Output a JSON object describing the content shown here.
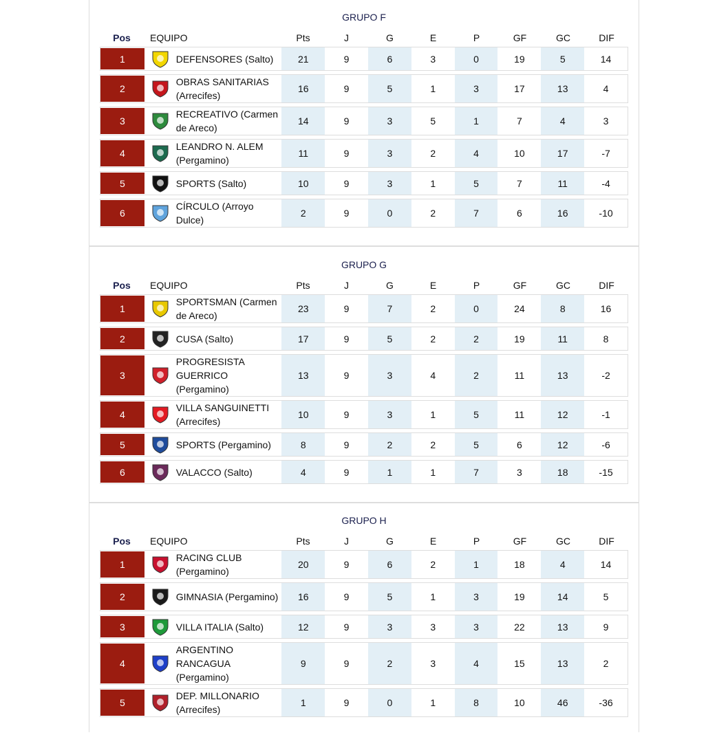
{
  "headers": {
    "pos": "Pos",
    "team": "EQUIPO",
    "cols": [
      "Pts",
      "J",
      "G",
      "E",
      "P",
      "GF",
      "GC",
      "DIF"
    ]
  },
  "groups": [
    {
      "title": "GRUPO F",
      "rows": [
        {
          "pos": "1",
          "team": "DEFENSORES (Salto)",
          "logo": "#f2d600",
          "stats": [
            "21",
            "9",
            "6",
            "3",
            "0",
            "19",
            "5",
            "14"
          ]
        },
        {
          "pos": "2",
          "team": "OBRAS SANITARIAS (Arrecifes)",
          "logo": "#c4161c",
          "stats": [
            "16",
            "9",
            "5",
            "1",
            "3",
            "17",
            "13",
            "4"
          ]
        },
        {
          "pos": "3",
          "team": "RECREATIVO (Carmen de Areco)",
          "logo": "#2e8b3d",
          "stats": [
            "14",
            "9",
            "3",
            "5",
            "1",
            "7",
            "4",
            "3"
          ]
        },
        {
          "pos": "4",
          "team": "LEANDRO N. ALEM (Pergamino)",
          "logo": "#1d6b4f",
          "stats": [
            "11",
            "9",
            "3",
            "2",
            "4",
            "10",
            "17",
            "-7"
          ]
        },
        {
          "pos": "5",
          "team": "SPORTS (Salto)",
          "logo": "#111111",
          "stats": [
            "10",
            "9",
            "3",
            "1",
            "5",
            "7",
            "11",
            "-4"
          ]
        },
        {
          "pos": "6",
          "team": "CÍRCULO (Arroyo Dulce)",
          "logo": "#5fa3dc",
          "stats": [
            "2",
            "9",
            "0",
            "2",
            "7",
            "6",
            "16",
            "-10"
          ]
        }
      ]
    },
    {
      "title": "GRUPO G",
      "rows": [
        {
          "pos": "1",
          "team": "SPORTSMAN (Carmen de Areco)",
          "logo": "#e8c800",
          "stats": [
            "23",
            "9",
            "7",
            "2",
            "0",
            "24",
            "8",
            "16"
          ]
        },
        {
          "pos": "2",
          "team": "CUSA (Salto)",
          "logo": "#222222",
          "stats": [
            "17",
            "9",
            "5",
            "2",
            "2",
            "19",
            "11",
            "8"
          ]
        },
        {
          "pos": "3",
          "team": "PROGRESISTA GUERRICO (Pergamino)",
          "logo": "#d0202a",
          "stats": [
            "13",
            "9",
            "3",
            "4",
            "2",
            "11",
            "13",
            "-2"
          ]
        },
        {
          "pos": "4",
          "team": "VILLA SANGUINETTI (Arrecifes)",
          "logo": "#e31b23",
          "stats": [
            "10",
            "9",
            "3",
            "1",
            "5",
            "11",
            "12",
            "-1"
          ]
        },
        {
          "pos": "5",
          "team": "SPORTS (Pergamino)",
          "logo": "#1f4c9c",
          "stats": [
            "8",
            "9",
            "2",
            "2",
            "5",
            "6",
            "12",
            "-6"
          ]
        },
        {
          "pos": "6",
          "team": "VALACCO (Salto)",
          "logo": "#6b2a5a",
          "stats": [
            "4",
            "9",
            "1",
            "1",
            "7",
            "3",
            "18",
            "-15"
          ]
        }
      ]
    },
    {
      "title": "GRUPO H",
      "rows": [
        {
          "pos": "1",
          "team": "RACING CLUB (Pergamino)",
          "logo": "#c8102e",
          "stats": [
            "20",
            "9",
            "6",
            "2",
            "1",
            "18",
            "4",
            "14"
          ]
        },
        {
          "pos": "2",
          "team": "GIMNASIA (Pergamino)",
          "logo": "#1a1a1a",
          "stats": [
            "16",
            "9",
            "5",
            "1",
            "3",
            "19",
            "14",
            "5"
          ]
        },
        {
          "pos": "3",
          "team": "VILLA ITALIA (Salto)",
          "logo": "#1e9a3a",
          "stats": [
            "12",
            "9",
            "3",
            "3",
            "3",
            "22",
            "13",
            "9"
          ]
        },
        {
          "pos": "4",
          "team": "ARGENTINO RANCAGUA (Pergamino)",
          "logo": "#1e40c8",
          "stats": [
            "9",
            "9",
            "2",
            "3",
            "4",
            "15",
            "13",
            "2"
          ]
        },
        {
          "pos": "5",
          "team": "DEP. MILLONARIO (Arrecifes)",
          "logo": "#b0202a",
          "stats": [
            "1",
            "9",
            "0",
            "1",
            "8",
            "10",
            "46",
            "-36"
          ]
        }
      ]
    }
  ]
}
